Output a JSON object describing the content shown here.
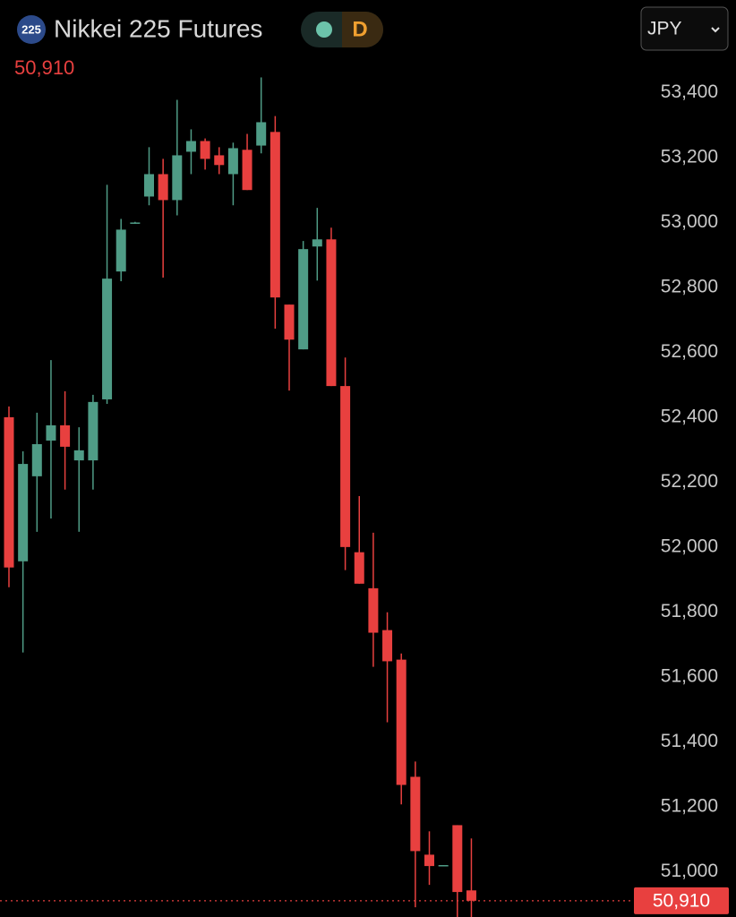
{
  "header": {
    "badge": "225",
    "title": "Nikkei 225 Futures",
    "interval": "D",
    "currency": "JPY"
  },
  "chart_data": {
    "type": "candlestick",
    "up_color": "#4f9c86",
    "down_color": "#e8403f",
    "ylim": [
      50860,
      53520
    ],
    "yticks": [
      {
        "value": 51000,
        "label": "51,000"
      },
      {
        "value": 51200,
        "label": "51,200"
      },
      {
        "value": 51400,
        "label": "51,400"
      },
      {
        "value": 51600,
        "label": "51,600"
      },
      {
        "value": 51800,
        "label": "51,800"
      },
      {
        "value": 52000,
        "label": "52,000"
      },
      {
        "value": 52200,
        "label": "52,200"
      },
      {
        "value": 52400,
        "label": "52,400"
      },
      {
        "value": 52600,
        "label": "52,600"
      },
      {
        "value": 52800,
        "label": "52,800"
      },
      {
        "value": 53000,
        "label": "53,000"
      },
      {
        "value": 53200,
        "label": "53,200"
      },
      {
        "value": 53400,
        "label": "53,400"
      }
    ],
    "last_price": {
      "value": 50910,
      "label": "50,910"
    },
    "open": [
      52400,
      51956,
      52218,
      52328,
      52375,
      52267,
      52267,
      52455,
      52849,
      52998,
      53080,
      53149,
      53069,
      53218,
      53251,
      53207,
      53149,
      53224,
      53237,
      53279,
      52747,
      52609,
      52926,
      52948,
      52496,
      51984,
      51873,
      51744,
      51653,
      51292,
      51052,
      51017,
      51143,
      50942
    ],
    "high": [
      52433,
      52295,
      52414,
      52576,
      52480,
      52369,
      52469,
      53116,
      53011,
      53002,
      53232,
      53196,
      53378,
      53287,
      53259,
      53232,
      53246,
      53273,
      53447,
      53328,
      52747,
      52943,
      53045,
      52984,
      52584,
      52157,
      52044,
      51799,
      51672,
      51339,
      51124,
      51020,
      51143,
      51102
    ],
    "low": [
      51876,
      51675,
      52047,
      52088,
      52177,
      52047,
      52177,
      52441,
      52819,
      52996,
      53053,
      52830,
      53022,
      53149,
      53163,
      53149,
      53053,
      53100,
      53213,
      52673,
      52482,
      52609,
      52821,
      52496,
      51929,
      51887,
      51631,
      51460,
      51207,
      50890,
      50959,
      51017,
      50860,
      50860
    ],
    "close": [
      51937,
      52256,
      52317,
      52375,
      52309,
      52298,
      52447,
      52827,
      52978,
      53000,
      53149,
      53069,
      53207,
      53251,
      53196,
      53177,
      53229,
      53100,
      53309,
      52769,
      52639,
      52918,
      52948,
      52496,
      52000,
      51887,
      51736,
      51648,
      51267,
      51063,
      51017,
      51020,
      50937,
      50910
    ]
  }
}
